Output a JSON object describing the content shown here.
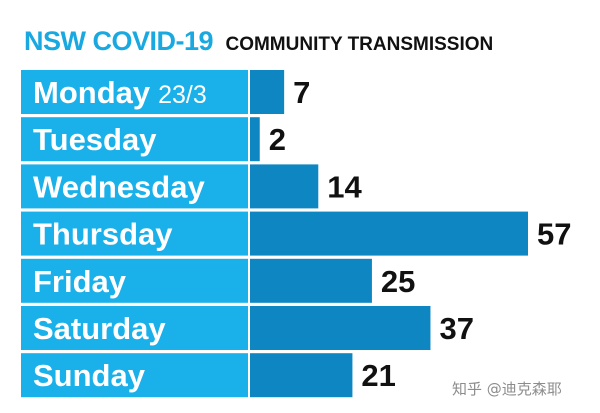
{
  "header": {
    "title": "NSW COVID-19",
    "subtitle": "COMMUNITY TRANSMISSION"
  },
  "colors": {
    "label_bg": "#1ab0ea",
    "bar": "#0e86c2",
    "title": "#19a9e0",
    "value_text": "#111111"
  },
  "watermark": "知乎 @迪克森耶",
  "chart_data": {
    "type": "bar",
    "orientation": "horizontal",
    "title": "NSW COVID-19",
    "subtitle": "COMMUNITY TRANSMISSION",
    "categories": [
      "Monday",
      "Tuesday",
      "Wednesday",
      "Thursday",
      "Friday",
      "Saturday",
      "Sunday"
    ],
    "category_suffix": [
      "23/3",
      "",
      "",
      "",
      "",
      "",
      ""
    ],
    "values": [
      7,
      2,
      14,
      57,
      25,
      37,
      21
    ],
    "xlim": [
      0,
      57
    ],
    "grid": false,
    "legend": "none"
  }
}
